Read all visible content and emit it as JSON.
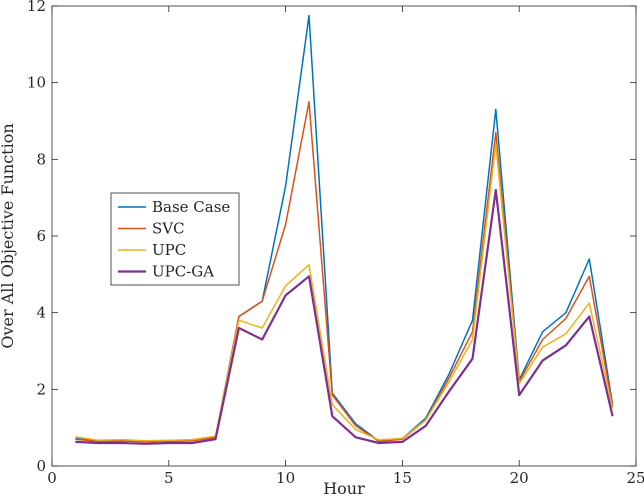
{
  "chart_data": {
    "type": "line",
    "title": "",
    "xlabel": "Hour",
    "ylabel": "Over All Objective Function",
    "xlim": [
      0,
      25
    ],
    "ylim": [
      0,
      12
    ],
    "xticks": [
      "0",
      "5",
      "10",
      "15",
      "20",
      "25"
    ],
    "yticks": [
      "0",
      "2",
      "4",
      "6",
      "8",
      "10",
      "12"
    ],
    "grid": false,
    "legend_position": "center-left",
    "x": [
      1,
      2,
      3,
      4,
      5,
      6,
      7,
      8,
      9,
      10,
      11,
      12,
      13,
      14,
      15,
      16,
      17,
      18,
      19,
      20,
      21,
      22,
      23,
      24
    ],
    "series": [
      {
        "name": "Base Case",
        "color": "#0072BD",
        "values": [
          0.72,
          0.65,
          0.66,
          0.64,
          0.65,
          0.67,
          0.75,
          3.9,
          4.3,
          7.3,
          11.75,
          1.9,
          1.1,
          0.65,
          0.72,
          1.25,
          2.4,
          3.8,
          9.3,
          2.25,
          3.5,
          4.0,
          5.4,
          1.6
        ]
      },
      {
        "name": "SVC",
        "color": "#D95319",
        "values": [
          0.7,
          0.64,
          0.65,
          0.63,
          0.64,
          0.66,
          0.74,
          3.9,
          4.3,
          6.3,
          9.5,
          1.85,
          1.05,
          0.64,
          0.7,
          1.2,
          2.3,
          3.5,
          8.7,
          2.2,
          3.3,
          3.85,
          4.95,
          1.55
        ]
      },
      {
        "name": "UPC",
        "color": "#EDB120",
        "values": [
          0.76,
          0.67,
          0.69,
          0.66,
          0.67,
          0.69,
          0.78,
          3.8,
          3.6,
          4.7,
          5.25,
          1.6,
          0.95,
          0.68,
          0.72,
          1.2,
          2.2,
          3.3,
          8.4,
          2.15,
          3.1,
          3.45,
          4.25,
          1.5
        ]
      },
      {
        "name": "UPC-GA",
        "color": "#7E2F8E",
        "values": [
          0.63,
          0.6,
          0.6,
          0.58,
          0.6,
          0.6,
          0.7,
          3.6,
          3.3,
          4.45,
          4.95,
          1.3,
          0.75,
          0.6,
          0.63,
          1.05,
          1.95,
          2.8,
          7.2,
          1.85,
          2.75,
          3.15,
          3.9,
          1.3
        ]
      }
    ]
  }
}
